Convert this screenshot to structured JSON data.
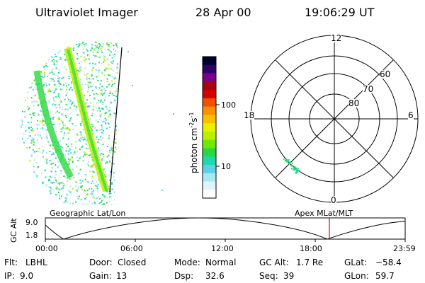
{
  "header": {
    "title": "Ultraviolet Imager",
    "date": "28 Apr 00",
    "time": "19:06:29 UT"
  },
  "colorbar": {
    "axis_label": "photon cm",
    "axis_exp1": "-2",
    "axis_mid": "s",
    "axis_exp2": "-1",
    "ticks": [
      "100",
      "10"
    ],
    "colors": [
      "#000030",
      "#30006a",
      "#7a0090",
      "#a80010",
      "#d40000",
      "#f05000",
      "#f89000",
      "#f8c000",
      "#e8f000",
      "#b8f000",
      "#70e800",
      "#28d840",
      "#20d8b0",
      "#60d0e8",
      "#a8e8f0",
      "#dff4f8",
      "#ffffff"
    ]
  },
  "polar": {
    "mlt_labels": {
      "top": "12",
      "left": "18",
      "right": "6",
      "bottom": "0"
    },
    "lat_labels": [
      "60",
      "70",
      "80"
    ]
  },
  "orbit": {
    "left_caption": "Geographic Lat/Lon",
    "right_caption": "Apex MLat/MLT",
    "y_label": "GC Alt",
    "y_ticks": [
      "9.0",
      "1.8"
    ],
    "x_ticks": [
      "00:00",
      "06:00",
      "12:00",
      "18:00",
      "23:59"
    ],
    "marker_color": "#e00000"
  },
  "status": {
    "row1": [
      {
        "key": "Flt:",
        "val": "LBHL"
      },
      {
        "key": "Door:",
        "val": "Closed"
      },
      {
        "key": "Mode:",
        "val": "Normal"
      },
      {
        "key": "GC Alt:",
        "val": "1.7 Re"
      },
      {
        "key": "GLat:",
        "val": "−58.4"
      }
    ],
    "row2": [
      {
        "key": "IP:",
        "val": "9.0"
      },
      {
        "key": "Gain:",
        "val": "13"
      },
      {
        "key": "Dsp:",
        "val": "32.6"
      },
      {
        "key": "Seq:",
        "val": "39"
      },
      {
        "key": "GLon:",
        "val": "59.7"
      }
    ]
  }
}
